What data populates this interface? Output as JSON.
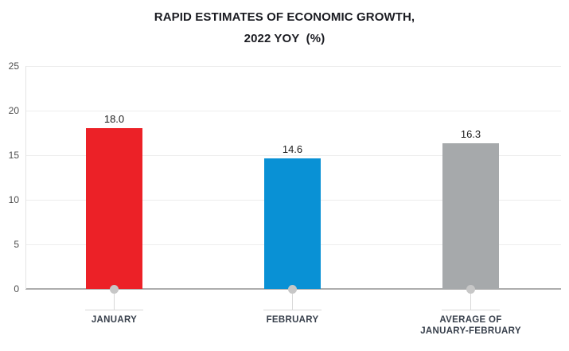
{
  "header": {
    "title_line1": "RAPID ESTIMATES OF ECONOMIC GROWTH,",
    "title_line2": "2022 YOY  (%)"
  },
  "chart_data": {
    "type": "bar",
    "title": "RAPID ESTIMATES OF ECONOMIC GROWTH, 2022 YOY (%)",
    "categories": [
      "JANUARY",
      "FEBRUARY",
      "AVERAGE OF JANUARY-FEBRUARY"
    ],
    "category_lines": [
      [
        "JANUARY"
      ],
      [
        "FEBRUARY"
      ],
      [
        "AVERAGE OF",
        "JANUARY-FEBRUARY"
      ]
    ],
    "values": [
      18.0,
      14.6,
      16.3
    ],
    "value_labels": [
      "18.0",
      "14.6",
      "16.3"
    ],
    "bar_colors": [
      "#ec2127",
      "#0991d5",
      "#a6a9ab"
    ],
    "yticks": [
      0,
      5,
      10,
      15,
      20,
      25
    ],
    "ytick_labels": [
      "0",
      "5",
      "10",
      "15",
      "20",
      "25"
    ],
    "ylim": [
      0,
      25
    ],
    "xlabel": "",
    "ylabel": "",
    "grid": true,
    "legend": false
  },
  "colors": {
    "title_text": "#1b1c22",
    "value_label_text": "#1c1c1c",
    "axis_label_text": "#4d4d4d",
    "category_label_text": "#38404c",
    "gridline": "#ededed",
    "axis_line": "#e4e4e4",
    "baseline": "#adadad",
    "marker": "#c7c7c7",
    "marker_stem": "#d9d9d9",
    "background": "#ffffff"
  }
}
